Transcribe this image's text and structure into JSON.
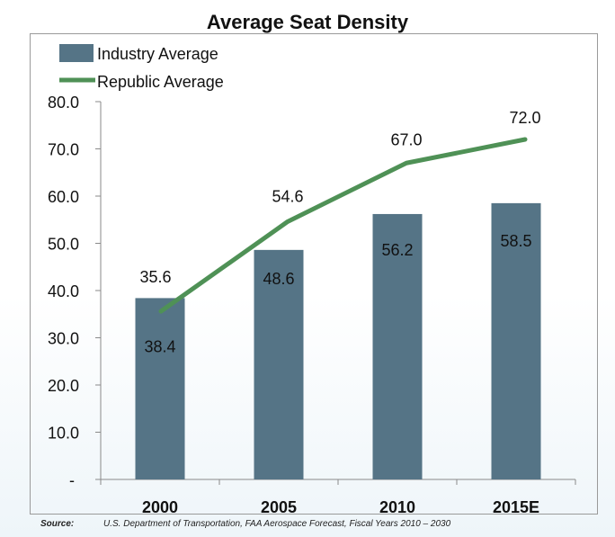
{
  "chart_data": {
    "type": "bar",
    "title": "Average Seat Density",
    "categories": [
      "2000",
      "2005",
      "2010",
      "2015E"
    ],
    "series": [
      {
        "name": "Industry Average",
        "kind": "bar",
        "color": "#557486",
        "values": [
          38.4,
          48.6,
          56.2,
          58.5
        ]
      },
      {
        "name": "Republic Average",
        "kind": "line",
        "color": "#4f9156",
        "values": [
          35.6,
          54.6,
          67.0,
          72.0
        ]
      }
    ],
    "ylim": [
      0,
      80
    ],
    "yticks": [
      "-",
      "10.0",
      "20.0",
      "30.0",
      "40.0",
      "50.0",
      "60.0",
      "70.0",
      "80.0"
    ],
    "legend": "top-left",
    "grid": false
  },
  "source": {
    "label": "Source:",
    "text": "U.S. Department of Transportation, FAA Aerospace Forecast, Fiscal Years 2010 – 2030"
  }
}
